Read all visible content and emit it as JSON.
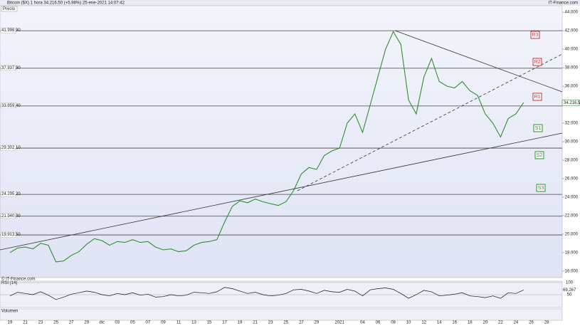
{
  "header": {
    "title": "Bitcoin ($X) 1 hora 34.216,50 (+5,98%) 25-ene-2021 14:07:42",
    "brand": "IT-Finance.com"
  },
  "chart_data": {
    "type": "line",
    "watermark": "© IT-Finance.com",
    "categories": [
      "19",
      null,
      "21",
      null,
      "23",
      null,
      "25",
      null,
      "27",
      null,
      "29",
      null,
      "dic",
      null,
      "03",
      null,
      "05",
      null,
      "07",
      null,
      "09",
      null,
      "11",
      null,
      "13",
      null,
      "15",
      null,
      "17",
      null,
      "19",
      null,
      "21",
      null,
      "23",
      null,
      "25",
      null,
      "27",
      null,
      "29",
      null,
      null,
      "2021",
      null,
      null,
      "04",
      null,
      "06",
      null,
      "08",
      null,
      "10",
      null,
      "12",
      null,
      "14",
      null,
      "16",
      null,
      "18",
      null,
      "20",
      null,
      "22",
      null,
      "24",
      null,
      "26",
      null,
      "28"
    ],
    "series": [
      {
        "name": "Precio",
        "color": "#2f8f2f",
        "values": [
          18000,
          18500,
          18600,
          18400,
          19000,
          18800,
          17000,
          17100,
          17700,
          18100,
          18900,
          19500,
          19300,
          18800,
          19200,
          19100,
          19400,
          19100,
          19200,
          18600,
          18300,
          18400,
          18100,
          18200,
          18800,
          19100,
          19200,
          19400,
          21300,
          23000,
          23600,
          23400,
          23800,
          23500,
          23300,
          23100,
          23500,
          24700,
          26500,
          27200,
          27000,
          28500,
          29000,
          29300,
          32000,
          33000,
          31000,
          34000,
          37000,
          40000,
          41900,
          40500,
          34500,
          33000,
          37000,
          39000,
          36500,
          36000,
          35800,
          36500,
          35500,
          35000,
          33000,
          32000,
          30500,
          32500,
          33000,
          34216.5,
          null,
          null,
          null
        ]
      }
    ],
    "ylim": [
      15300,
      44700
    ],
    "yticks": [
      {
        "value": 16000,
        "label": "16.000"
      },
      {
        "value": 18000,
        "label": "18.000"
      },
      {
        "value": 20000,
        "label": "20.000"
      },
      {
        "value": 22000,
        "label": "22.000"
      },
      {
        "value": 24000,
        "label": "24.000"
      },
      {
        "value": 26000,
        "label": "26.000"
      },
      {
        "value": 28000,
        "label": "28.000"
      },
      {
        "value": 30000,
        "label": "30.000"
      },
      {
        "value": 32000,
        "label": "32.000"
      },
      {
        "value": 34000,
        "label": "34.000"
      },
      {
        "value": 36000,
        "label": "36.000"
      },
      {
        "value": 38000,
        "label": "38.000"
      },
      {
        "value": 40000,
        "label": "40.000"
      },
      {
        "value": 42000,
        "label": "42.000"
      },
      {
        "value": 44000,
        "label": "44.000"
      }
    ],
    "levels": [
      {
        "value": 41998.9,
        "label": "41.998,90"
      },
      {
        "value": 37937.9,
        "label": "37.937,90"
      },
      {
        "value": 33859.4,
        "label": "33.859,40"
      },
      {
        "value": 29302.1,
        "label": "29.302,10"
      },
      {
        "value": 24295.2,
        "label": "24.295,20"
      },
      {
        "value": 21940,
        "label": "21.940,00"
      },
      {
        "value": 19913.5,
        "label": "19.913,50"
      }
    ],
    "current": {
      "value": 34216.5,
      "label": "34.216,50"
    },
    "annotations": [
      "R3",
      "R2",
      "R1",
      "S1",
      "S2",
      "S3"
    ],
    "rsi": {
      "name": "RSI (14)",
      "color": "#111111",
      "ylim": [
        0,
        100
      ],
      "yticks": [
        50,
        100
      ],
      "current": {
        "value": 69.267,
        "label": "69,267"
      },
      "values": [
        45,
        60,
        55,
        50,
        62,
        48,
        30,
        40,
        52,
        58,
        65,
        60,
        50,
        45,
        55,
        50,
        58,
        48,
        52,
        40,
        42,
        50,
        45,
        48,
        60,
        58,
        55,
        62,
        80,
        75,
        65,
        55,
        60,
        50,
        45,
        48,
        55,
        70,
        72,
        65,
        55,
        68,
        62,
        60,
        72,
        65,
        45,
        70,
        75,
        78,
        72,
        55,
        35,
        50,
        68,
        62,
        45,
        48,
        52,
        58,
        45,
        42,
        38,
        45,
        35,
        58,
        55,
        69.267,
        null,
        null,
        null
      ]
    },
    "volume_label": "Volumen"
  }
}
